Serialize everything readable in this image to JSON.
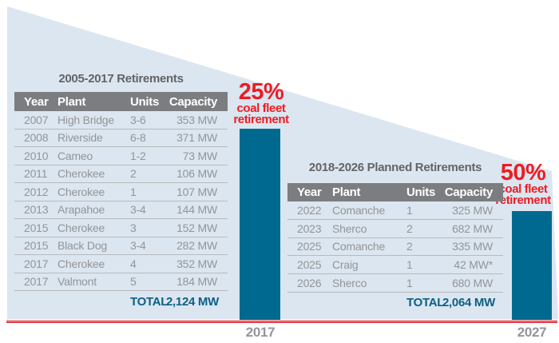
{
  "colors": {
    "wedge": "#dbe6f0",
    "bar": "#006990",
    "accent_red": "#ed1c24",
    "baseline_red": "#dd3b42",
    "table_header_bg": "#7c7d80",
    "table_text": "#939598",
    "total_text": "#0e5f84",
    "title_text": "#636466"
  },
  "chart_data": [
    {
      "type": "table",
      "title": "2005-2017 Retirements",
      "columns": [
        "Year",
        "Plant",
        "Units",
        "Capacity"
      ],
      "rows": [
        [
          "2007",
          "High Bridge",
          "3-6",
          "353 MW"
        ],
        [
          "2008",
          "Riverside",
          "6-8",
          "371 MW"
        ],
        [
          "2010",
          "Cameo",
          "1-2",
          "73 MW"
        ],
        [
          "2011",
          "Cherokee",
          "2",
          "106 MW"
        ],
        [
          "2012",
          "Cherokee",
          "1",
          "107 MW"
        ],
        [
          "2013",
          "Arapahoe",
          "3-4",
          "144 MW"
        ],
        [
          "2015",
          "Cherokee",
          "3",
          "152 MW"
        ],
        [
          "2015",
          "Black Dog",
          "3-4",
          "282 MW"
        ],
        [
          "2017",
          "Cherokee",
          "4",
          "352 MW"
        ],
        [
          "2017",
          "Valmont",
          "5",
          "184 MW"
        ]
      ],
      "total_label": "TOTAL",
      "total_value": "2,124 MW"
    },
    {
      "type": "table",
      "title": "2018-2026 Planned Retirements",
      "columns": [
        "Year",
        "Plant",
        "Units",
        "Capacity"
      ],
      "rows": [
        [
          "2022",
          "Comanche",
          "1",
          "325 MW"
        ],
        [
          "2023",
          "Sherco",
          "2",
          "682 MW"
        ],
        [
          "2025",
          "Comanche",
          "2",
          "335 MW"
        ],
        [
          "2025",
          "Craig",
          "1",
          "42 MW*"
        ],
        [
          "2026",
          "Sherco",
          "1",
          "680 MW"
        ]
      ],
      "total_label": "TOTAL",
      "total_value": "2,064 MW"
    },
    {
      "type": "bar",
      "categories": [
        "2017",
        "2027"
      ],
      "values": [
        25,
        50
      ],
      "value_unit": "% coal fleet retirement",
      "ylim": [
        0,
        100
      ],
      "legend": "none",
      "callouts": [
        {
          "percent": "25%",
          "caption_line1": "coal fleet",
          "caption_line2": "retirement"
        },
        {
          "percent": "50%",
          "caption_line1": "coal fleet",
          "caption_line2": "retirement"
        }
      ]
    }
  ]
}
